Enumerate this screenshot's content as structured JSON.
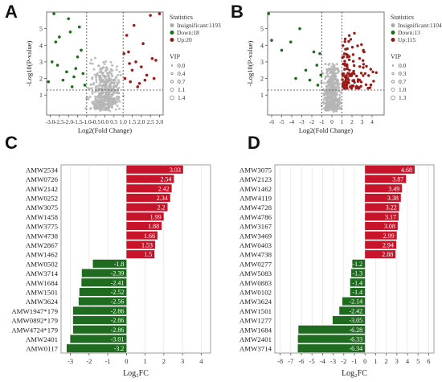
{
  "panel_labels": {
    "A": "A",
    "B": "B",
    "C": "C",
    "D": "D"
  },
  "chart_data": [
    {
      "panel": "A",
      "type": "scatter",
      "xlabel": "Log2(Fold Change)",
      "ylabel": "-Log10(P-value)",
      "xlim": [
        -3.2,
        3.2
      ],
      "ylim": [
        -0.2,
        6.0
      ],
      "xticks": [
        "-3.0",
        "-2.5",
        "-2.0",
        "-1.5",
        "-1.0",
        "-0.5",
        "0.0",
        "0.5",
        "1.0",
        "1.5",
        "2.0",
        "2.5",
        "3.0"
      ],
      "xtick_values": [
        -3.0,
        -2.5,
        -2.0,
        -1.5,
        -1.0,
        -0.5,
        0.0,
        0.5,
        1.0,
        1.5,
        2.0,
        2.5,
        3.0
      ],
      "yticks": [
        1,
        2,
        3,
        4,
        5
      ],
      "thresholds": {
        "x": [
          -1.0,
          1.0
        ],
        "y": 1.3
      },
      "legend": {
        "title": "Statistics",
        "items": [
          {
            "label": "Insignificant:1193",
            "color": "#a8a8a8"
          },
          {
            "label": "Down:18",
            "color": "#1f6b1f"
          },
          {
            "label": "Up:20",
            "color": "#8b1a1a"
          }
        ]
      },
      "vip_legend": {
        "title": "VIP",
        "items": [
          "0.0",
          "0.4",
          "0.7",
          "1.1",
          "1.4"
        ]
      },
      "down_points": [
        [
          -3.1,
          1.8
        ],
        [
          -2.9,
          3.0
        ],
        [
          -2.6,
          2.8
        ],
        [
          -2.3,
          1.9
        ],
        [
          -2.1,
          2.4
        ],
        [
          -1.9,
          4.8
        ],
        [
          -1.7,
          2.1
        ],
        [
          -1.6,
          2.6
        ],
        [
          -1.4,
          5.1
        ],
        [
          -1.3,
          3.7
        ],
        [
          -2.7,
          4.2
        ],
        [
          -1.2,
          2.3
        ],
        [
          -2.0,
          5.6
        ],
        [
          -1.5,
          3.3
        ],
        [
          -2.5,
          4.5
        ],
        [
          -1.1,
          1.6
        ],
        [
          -2.8,
          5.9
        ],
        [
          -1.8,
          1.5
        ]
      ],
      "up_points": [
        [
          1.1,
          2.0
        ],
        [
          1.3,
          3.6
        ],
        [
          1.4,
          1.8
        ],
        [
          1.5,
          2.5
        ],
        [
          1.6,
          5.2
        ],
        [
          1.7,
          3.0
        ],
        [
          1.9,
          1.7
        ],
        [
          2.0,
          2.7
        ],
        [
          2.1,
          4.1
        ],
        [
          2.3,
          2.2
        ],
        [
          2.5,
          5.8
        ],
        [
          2.6,
          3.2
        ],
        [
          2.8,
          3.1
        ],
        [
          3.0,
          5.9
        ],
        [
          1.2,
          4.6
        ],
        [
          1.8,
          1.5
        ],
        [
          2.2,
          1.9
        ],
        [
          1.05,
          3.5
        ],
        [
          2.7,
          2.0
        ],
        [
          1.35,
          2.9
        ]
      ]
    },
    {
      "panel": "B",
      "type": "scatter",
      "xlabel": "Log2(Fold Change)",
      "ylabel": "-Log10(P-value)",
      "xlim": [
        -6.4,
        5.2
      ],
      "ylim": [
        -0.2,
        6.0
      ],
      "xticks": [
        "-6",
        "-5",
        "-4",
        "-3",
        "-2",
        "-1",
        "0",
        "1",
        "2",
        "3",
        "4"
      ],
      "xtick_values": [
        -6,
        -5,
        -4,
        -3,
        -2,
        -1,
        0,
        1,
        2,
        3,
        4
      ],
      "yticks": [
        1,
        2,
        3,
        4,
        5
      ],
      "thresholds": {
        "x": [
          -1.0,
          1.0
        ],
        "y": 1.3
      },
      "legend": {
        "title": "Statistics",
        "items": [
          {
            "label": "Insignificant:1104",
            "color": "#a8a8a8"
          },
          {
            "label": "Down:13",
            "color": "#1f6b1f"
          },
          {
            "label": "Up:115",
            "color": "#8b1a1a"
          }
        ]
      },
      "vip_legend": {
        "title": "VIP",
        "items": [
          "0.0",
          "0.3",
          "0.7",
          "1.0",
          "1.3"
        ]
      },
      "down_points": [
        [
          -6.3,
          5.9
        ],
        [
          -6.0,
          4.3
        ],
        [
          -5.0,
          3.7
        ],
        [
          -3.2,
          5.0
        ],
        [
          -2.6,
          2.5
        ],
        [
          -1.8,
          3.6
        ],
        [
          -1.5,
          2.8
        ],
        [
          -1.2,
          3.5
        ],
        [
          -1.4,
          1.6
        ],
        [
          -2.2,
          1.9
        ],
        [
          -4.1,
          4.2
        ],
        [
          -1.1,
          2.2
        ],
        [
          -3.6,
          2.0
        ]
      ]
    },
    {
      "panel": "C",
      "type": "bar",
      "orientation": "horizontal",
      "xlabel": "Log₂FC",
      "xlim": [
        -3.5,
        4.5
      ],
      "xticks": [
        -3,
        -2,
        -1,
        0,
        1,
        2,
        3,
        4
      ],
      "categories": [
        "AMW2534",
        "AMW0726",
        "AMW2142",
        "AMW0252",
        "AMW3075",
        "AMW1458",
        "AMW3775",
        "AMW4738",
        "AMW2867",
        "AMW1462",
        "AMW0502",
        "AMW3714",
        "AMW1684",
        "AMW1501",
        "AMW3624",
        "AMW1947*179",
        "AMW0892*179",
        "AMW4724*179",
        "AMW2401",
        "AMW0117"
      ],
      "values": [
        3.03,
        2.54,
        2.42,
        2.34,
        2.2,
        1.99,
        1.88,
        1.66,
        1.53,
        1.5,
        -1.8,
        -2.39,
        -2.41,
        -2.52,
        -2.56,
        -2.86,
        -2.86,
        -2.86,
        -3.01,
        -3.2
      ],
      "value_labels": [
        "3.03",
        "2.54",
        "2.42",
        "2.34",
        "2.2",
        "1.99",
        "1.88",
        "1.66",
        "1.53",
        "1.5",
        "-1.8",
        "-2.39",
        "-2.41",
        "-2.52",
        "-2.56",
        "-2.86",
        "-2.86",
        "-2.86",
        "-3.01",
        "-3.2"
      ],
      "colors": {
        "positive": "#c8142a",
        "negative": "#1f6b1f"
      }
    },
    {
      "panel": "D",
      "type": "bar",
      "orientation": "horizontal",
      "xlabel": "Log₂FC",
      "xlim": [
        -8.5,
        6.5
      ],
      "xticks": [
        -8,
        -7,
        -6,
        -5,
        -4,
        -3,
        -2,
        -1,
        0,
        1,
        2,
        3,
        4,
        5,
        6
      ],
      "categories": [
        "AMW3075",
        "AMW2123",
        "AMW1462",
        "AMW4119",
        "AMW4728",
        "AMW4786",
        "AMW3167",
        "AMW3469",
        "AMW0403",
        "AMW4738",
        "AMW0277",
        "AMW5083",
        "AMW0883",
        "AMW0102",
        "AMW3624",
        "AMW1501",
        "AMW1277",
        "AMW1684",
        "AMW2401",
        "AMW3714"
      ],
      "values": [
        4.68,
        3.87,
        3.49,
        3.38,
        3.22,
        3.17,
        3.08,
        2.99,
        2.94,
        2.88,
        -1.2,
        -1.3,
        -1.4,
        -1.4,
        -2.14,
        -2.42,
        -3.05,
        -6.28,
        -6.33,
        -6.34
      ],
      "value_labels": [
        "4.68",
        "3.87",
        "3.49",
        "3.38",
        "3.22",
        "3.17",
        "3.08",
        "2.99",
        "2.94",
        "2.88",
        "-1.2",
        "-1.3",
        "-1.4",
        "-1.4",
        "-2.14",
        "-2.42",
        "-3.05",
        "-6.28",
        "-6.33",
        "-6.34"
      ],
      "colors": {
        "positive": "#c8142a",
        "negative": "#1f6b1f"
      }
    }
  ]
}
